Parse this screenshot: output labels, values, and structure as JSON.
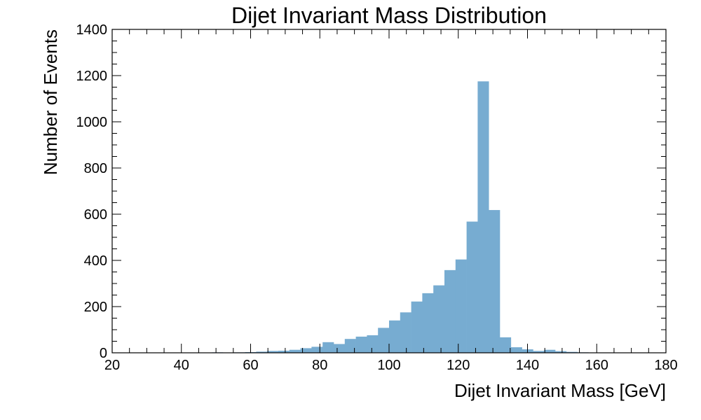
{
  "chart_data": {
    "type": "bar",
    "title": "Dijet Invariant Mass Distribution",
    "xlabel": "Dijet Invariant Mass [GeV]",
    "ylabel": "Number of Events",
    "xlim": [
      20,
      180
    ],
    "ylim": [
      0,
      1400
    ],
    "x_ticks": [
      "20",
      "40",
      "60",
      "80",
      "100",
      "120",
      "140",
      "160",
      "180"
    ],
    "y_ticks": [
      "0",
      "200",
      "400",
      "600",
      "800",
      "1000",
      "1200",
      "1400"
    ],
    "bar_color": "#77acd1",
    "grid": false,
    "bin_width": 3.2,
    "bins": [
      {
        "x0": 48.8,
        "value": 2
      },
      {
        "x0": 52.0,
        "value": 1
      },
      {
        "x0": 55.2,
        "value": 2
      },
      {
        "x0": 58.4,
        "value": 3
      },
      {
        "x0": 61.6,
        "value": 5
      },
      {
        "x0": 64.8,
        "value": 8
      },
      {
        "x0": 68.0,
        "value": 9
      },
      {
        "x0": 71.2,
        "value": 13
      },
      {
        "x0": 74.4,
        "value": 20
      },
      {
        "x0": 77.6,
        "value": 26
      },
      {
        "x0": 80.8,
        "value": 46
      },
      {
        "x0": 84.0,
        "value": 38
      },
      {
        "x0": 87.2,
        "value": 60
      },
      {
        "x0": 90.4,
        "value": 70
      },
      {
        "x0": 93.6,
        "value": 76
      },
      {
        "x0": 96.8,
        "value": 108
      },
      {
        "x0": 100.0,
        "value": 140
      },
      {
        "x0": 103.2,
        "value": 175
      },
      {
        "x0": 106.4,
        "value": 222
      },
      {
        "x0": 109.6,
        "value": 258
      },
      {
        "x0": 112.8,
        "value": 292
      },
      {
        "x0": 116.0,
        "value": 358
      },
      {
        "x0": 119.2,
        "value": 404
      },
      {
        "x0": 122.4,
        "value": 568
      },
      {
        "x0": 125.6,
        "value": 1175
      },
      {
        "x0": 128.8,
        "value": 618
      },
      {
        "x0": 132.0,
        "value": 67
      },
      {
        "x0": 135.2,
        "value": 24
      },
      {
        "x0": 138.4,
        "value": 15
      },
      {
        "x0": 141.6,
        "value": 8
      },
      {
        "x0": 144.8,
        "value": 13
      },
      {
        "x0": 148.0,
        "value": 7
      },
      {
        "x0": 151.2,
        "value": 4
      },
      {
        "x0": 154.4,
        "value": 2
      },
      {
        "x0": 157.6,
        "value": 1
      }
    ]
  }
}
